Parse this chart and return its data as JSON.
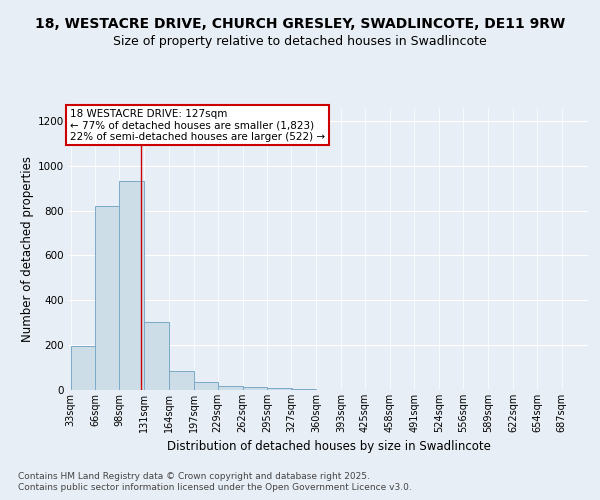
{
  "title_line1": "18, WESTACRE DRIVE, CHURCH GRESLEY, SWADLINCOTE, DE11 9RW",
  "title_line2": "Size of property relative to detached houses in Swadlincote",
  "xlabel": "Distribution of detached houses by size in Swadlincote",
  "ylabel": "Number of detached properties",
  "bins": [
    33,
    66,
    98,
    131,
    164,
    197,
    229,
    262,
    295,
    327,
    360,
    393,
    425,
    458,
    491,
    524,
    556,
    589,
    622,
    654,
    687
  ],
  "values": [
    195,
    820,
    930,
    305,
    85,
    35,
    20,
    15,
    10,
    5,
    0,
    0,
    0,
    0,
    0,
    0,
    0,
    0,
    0,
    0,
    0
  ],
  "bar_color": "#ccdde8",
  "bar_edge_color": "#7aaac8",
  "property_line_x": 127,
  "property_line_color": "#cc0000",
  "annotation_text": "18 WESTACRE DRIVE: 127sqm\n← 77% of detached houses are smaller (1,823)\n22% of semi-detached houses are larger (522) →",
  "annotation_box_color": "#ffffff",
  "annotation_box_edge_color": "#cc0000",
  "ylim": [
    0,
    1260
  ],
  "yticks": [
    0,
    200,
    400,
    600,
    800,
    1000,
    1200
  ],
  "footer_line1": "Contains HM Land Registry data © Crown copyright and database right 2025.",
  "footer_line2": "Contains public sector information licensed under the Open Government Licence v3.0.",
  "bg_color": "#e8eef5",
  "plot_bg_color": "#e8eef5",
  "grid_color": "#ffffff",
  "title_fontsize": 10,
  "subtitle_fontsize": 9,
  "tick_fontsize": 7,
  "label_fontsize": 8.5,
  "footer_fontsize": 6.5,
  "annotation_fontsize": 7.5
}
